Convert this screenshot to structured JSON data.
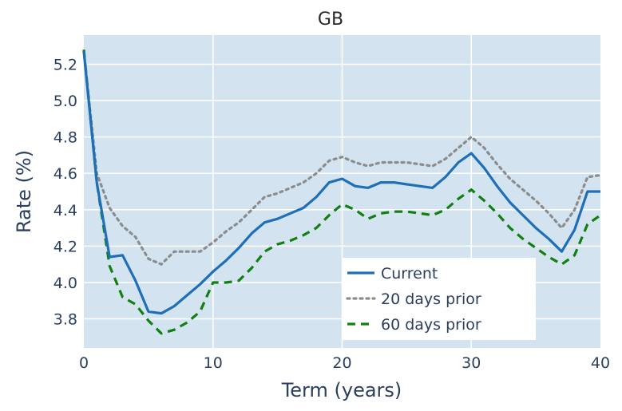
{
  "chart_data": {
    "type": "line",
    "title": "GB",
    "xlabel": "Term (years)",
    "ylabel": "Rate (%)",
    "xlim": [
      0,
      40
    ],
    "ylim": [
      3.64,
      5.36
    ],
    "xticks": [
      0,
      10,
      20,
      30,
      40
    ],
    "yticks": [
      3.8,
      4.0,
      4.2,
      4.4,
      4.6,
      4.8,
      5.0,
      5.2
    ],
    "grid": true,
    "legend_position": "bottom-right",
    "background_color": "#d3e4f0",
    "x": [
      0,
      1,
      2,
      3,
      4,
      5,
      6,
      7,
      8,
      9,
      10,
      11,
      12,
      13,
      14,
      15,
      16,
      17,
      18,
      19,
      20,
      21,
      22,
      23,
      24,
      25,
      26,
      27,
      28,
      29,
      30,
      31,
      32,
      33,
      34,
      35,
      36,
      37,
      38,
      39,
      40
    ],
    "series": [
      {
        "name": "Current",
        "color": "#1f6fb8",
        "dash": "solid",
        "values": [
          5.27,
          4.55,
          4.14,
          4.15,
          4.01,
          3.84,
          3.83,
          3.87,
          3.93,
          3.99,
          4.06,
          4.12,
          4.19,
          4.27,
          4.33,
          4.35,
          4.38,
          4.41,
          4.47,
          4.55,
          4.57,
          4.53,
          4.52,
          4.55,
          4.55,
          4.54,
          4.53,
          4.52,
          4.58,
          4.66,
          4.71,
          4.63,
          4.53,
          4.44,
          4.37,
          4.3,
          4.24,
          4.17,
          4.29,
          4.5,
          4.5
        ]
      },
      {
        "name": "20 days prior",
        "color": "#8c8c8c",
        "dash": "dotted",
        "values": [
          5.27,
          4.6,
          4.41,
          4.31,
          4.25,
          4.13,
          4.1,
          4.17,
          4.17,
          4.17,
          4.22,
          4.28,
          4.33,
          4.4,
          4.47,
          4.49,
          4.52,
          4.55,
          4.6,
          4.67,
          4.69,
          4.66,
          4.64,
          4.66,
          4.66,
          4.66,
          4.65,
          4.64,
          4.68,
          4.74,
          4.8,
          4.74,
          4.65,
          4.57,
          4.51,
          4.45,
          4.38,
          4.3,
          4.4,
          4.58,
          4.59
        ]
      },
      {
        "name": "60 days prior",
        "color": "#118011",
        "dash": "dashed",
        "values": [
          5.28,
          4.55,
          4.09,
          3.92,
          3.88,
          3.79,
          3.72,
          3.74,
          3.78,
          3.84,
          4.0,
          4.0,
          4.01,
          4.08,
          4.17,
          4.21,
          4.23,
          4.26,
          4.3,
          4.37,
          4.43,
          4.4,
          4.35,
          4.38,
          4.39,
          4.39,
          4.38,
          4.37,
          4.4,
          4.46,
          4.51,
          4.45,
          4.38,
          4.3,
          4.24,
          4.19,
          4.14,
          4.1,
          4.15,
          4.32,
          4.37
        ]
      }
    ]
  }
}
